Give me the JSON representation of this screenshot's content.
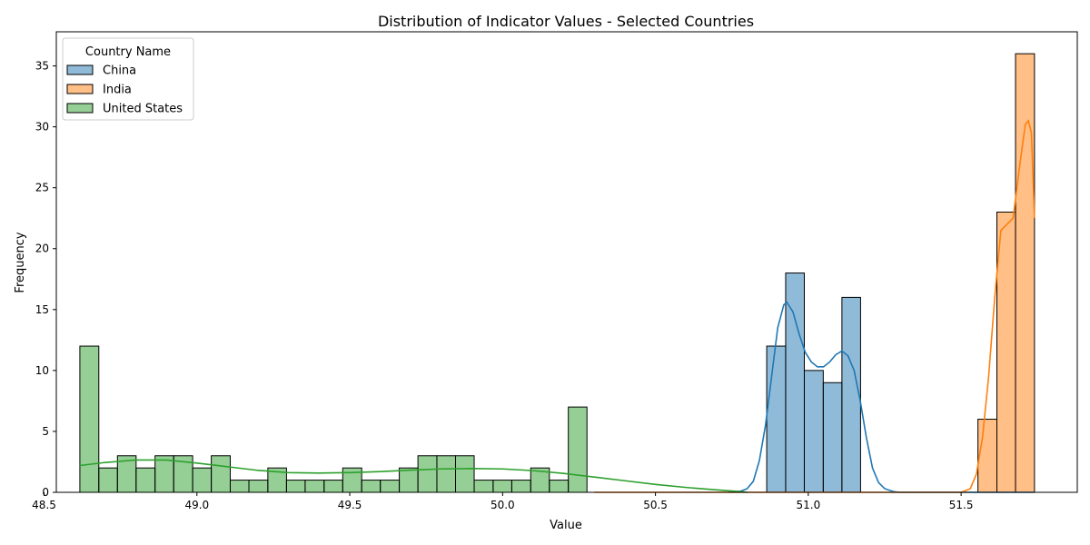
{
  "chart_data": {
    "type": "histogram",
    "title": "Distribution of Indicator Values - Selected Countries",
    "xlabel": "Value",
    "ylabel": "Frequency",
    "xlim": [
      48.54,
      51.88
    ],
    "ylim": [
      0,
      37.8
    ],
    "x_ticks": [
      48.5,
      49.0,
      49.5,
      50.0,
      50.5,
      51.0,
      51.5
    ],
    "x_tick_labels": [
      "48.5",
      "49.0",
      "49.5",
      "50.0",
      "50.5",
      "51.0",
      "51.5"
    ],
    "y_ticks": [
      0,
      5,
      10,
      15,
      20,
      25,
      30,
      35
    ],
    "y_tick_labels": [
      "0",
      "5",
      "10",
      "15",
      "20",
      "25",
      "30",
      "35"
    ],
    "bin_width": 0.0614,
    "grid": false,
    "legend": {
      "title": "Country Name",
      "position": "top-left"
    },
    "series": [
      {
        "name": "China",
        "color": "#1f77b4",
        "bins": [
          {
            "x0": 50.864,
            "x1": 50.926,
            "count": 12
          },
          {
            "x0": 50.926,
            "x1": 50.987,
            "count": 18
          },
          {
            "x0": 50.987,
            "x1": 51.049,
            "count": 10
          },
          {
            "x0": 51.049,
            "x1": 51.11,
            "count": 9
          },
          {
            "x0": 51.11,
            "x1": 51.171,
            "count": 16
          }
        ],
        "kde": [
          [
            50.74,
            0
          ],
          [
            50.78,
            0.1
          ],
          [
            50.8,
            0.3
          ],
          [
            50.82,
            0.9
          ],
          [
            50.84,
            2.6
          ],
          [
            50.86,
            5.5
          ],
          [
            50.88,
            9.5
          ],
          [
            50.9,
            13.5
          ],
          [
            50.92,
            15.4
          ],
          [
            50.93,
            15.6
          ],
          [
            50.95,
            14.8
          ],
          [
            50.97,
            13.0
          ],
          [
            50.99,
            11.5
          ],
          [
            51.01,
            10.7
          ],
          [
            51.03,
            10.3
          ],
          [
            51.05,
            10.3
          ],
          [
            51.07,
            10.7
          ],
          [
            51.09,
            11.3
          ],
          [
            51.11,
            11.6
          ],
          [
            51.13,
            11.2
          ],
          [
            51.15,
            10.0
          ],
          [
            51.17,
            7.5
          ],
          [
            51.19,
            4.5
          ],
          [
            51.21,
            2.0
          ],
          [
            51.23,
            0.8
          ],
          [
            51.25,
            0.3
          ],
          [
            51.28,
            0.05
          ],
          [
            51.3,
            0
          ],
          [
            51.74,
            0
          ]
        ]
      },
      {
        "name": "India",
        "color": "#ff7f0e",
        "bins": [
          {
            "x0": 51.555,
            "x1": 51.617,
            "count": 6
          },
          {
            "x0": 51.617,
            "x1": 51.678,
            "count": 23
          },
          {
            "x0": 51.678,
            "x1": 51.74,
            "count": 36
          }
        ],
        "kde": [
          [
            50.3,
            0
          ],
          [
            51.5,
            0
          ],
          [
            51.53,
            0.3
          ],
          [
            51.55,
            1.5
          ],
          [
            51.57,
            4.5
          ],
          [
            51.59,
            9.5
          ],
          [
            51.61,
            16.0
          ],
          [
            51.63,
            21.5
          ],
          [
            51.65,
            22.0
          ],
          [
            51.67,
            22.5
          ],
          [
            51.69,
            26.5
          ],
          [
            51.71,
            30.2
          ],
          [
            51.72,
            30.5
          ],
          [
            51.73,
            29.5
          ],
          [
            51.74,
            22.5
          ]
        ]
      },
      {
        "name": "United States",
        "color": "#2ca02c",
        "bins": [
          {
            "x0": 48.617,
            "x1": 48.679,
            "count": 12
          },
          {
            "x0": 48.679,
            "x1": 48.74,
            "count": 2
          },
          {
            "x0": 48.74,
            "x1": 48.801,
            "count": 3
          },
          {
            "x0": 48.801,
            "x1": 48.863,
            "count": 2
          },
          {
            "x0": 48.863,
            "x1": 48.924,
            "count": 3
          },
          {
            "x0": 48.924,
            "x1": 48.986,
            "count": 3
          },
          {
            "x0": 48.986,
            "x1": 49.047,
            "count": 2
          },
          {
            "x0": 49.047,
            "x1": 49.109,
            "count": 3
          },
          {
            "x0": 49.109,
            "x1": 49.17,
            "count": 1
          },
          {
            "x0": 49.17,
            "x1": 49.232,
            "count": 1
          },
          {
            "x0": 49.232,
            "x1": 49.293,
            "count": 2
          },
          {
            "x0": 49.293,
            "x1": 49.354,
            "count": 1
          },
          {
            "x0": 49.354,
            "x1": 49.416,
            "count": 1
          },
          {
            "x0": 49.416,
            "x1": 49.477,
            "count": 1
          },
          {
            "x0": 49.477,
            "x1": 49.539,
            "count": 2
          },
          {
            "x0": 49.539,
            "x1": 49.6,
            "count": 1
          },
          {
            "x0": 49.6,
            "x1": 49.662,
            "count": 1
          },
          {
            "x0": 49.662,
            "x1": 49.723,
            "count": 2
          },
          {
            "x0": 49.723,
            "x1": 49.785,
            "count": 3
          },
          {
            "x0": 49.785,
            "x1": 49.846,
            "count": 3
          },
          {
            "x0": 49.846,
            "x1": 49.907,
            "count": 3
          },
          {
            "x0": 49.907,
            "x1": 49.969,
            "count": 1
          },
          {
            "x0": 49.969,
            "x1": 50.03,
            "count": 1
          },
          {
            "x0": 50.03,
            "x1": 50.092,
            "count": 1
          },
          {
            "x0": 50.092,
            "x1": 50.153,
            "count": 2
          },
          {
            "x0": 50.153,
            "x1": 50.215,
            "count": 1
          },
          {
            "x0": 50.215,
            "x1": 50.276,
            "count": 7
          }
        ],
        "kde": [
          [
            48.617,
            2.2
          ],
          [
            48.7,
            2.45
          ],
          [
            48.8,
            2.65
          ],
          [
            48.9,
            2.65
          ],
          [
            49.0,
            2.4
          ],
          [
            49.1,
            2.1
          ],
          [
            49.2,
            1.8
          ],
          [
            49.3,
            1.62
          ],
          [
            49.4,
            1.58
          ],
          [
            49.5,
            1.62
          ],
          [
            49.6,
            1.7
          ],
          [
            49.7,
            1.82
          ],
          [
            49.8,
            1.92
          ],
          [
            49.9,
            1.95
          ],
          [
            50.0,
            1.92
          ],
          [
            50.1,
            1.78
          ],
          [
            50.2,
            1.55
          ],
          [
            50.3,
            1.25
          ],
          [
            50.4,
            0.95
          ],
          [
            50.5,
            0.65
          ],
          [
            50.6,
            0.4
          ],
          [
            50.7,
            0.2
          ],
          [
            50.78,
            0.05
          ],
          [
            50.8,
            0
          ]
        ]
      }
    ]
  }
}
